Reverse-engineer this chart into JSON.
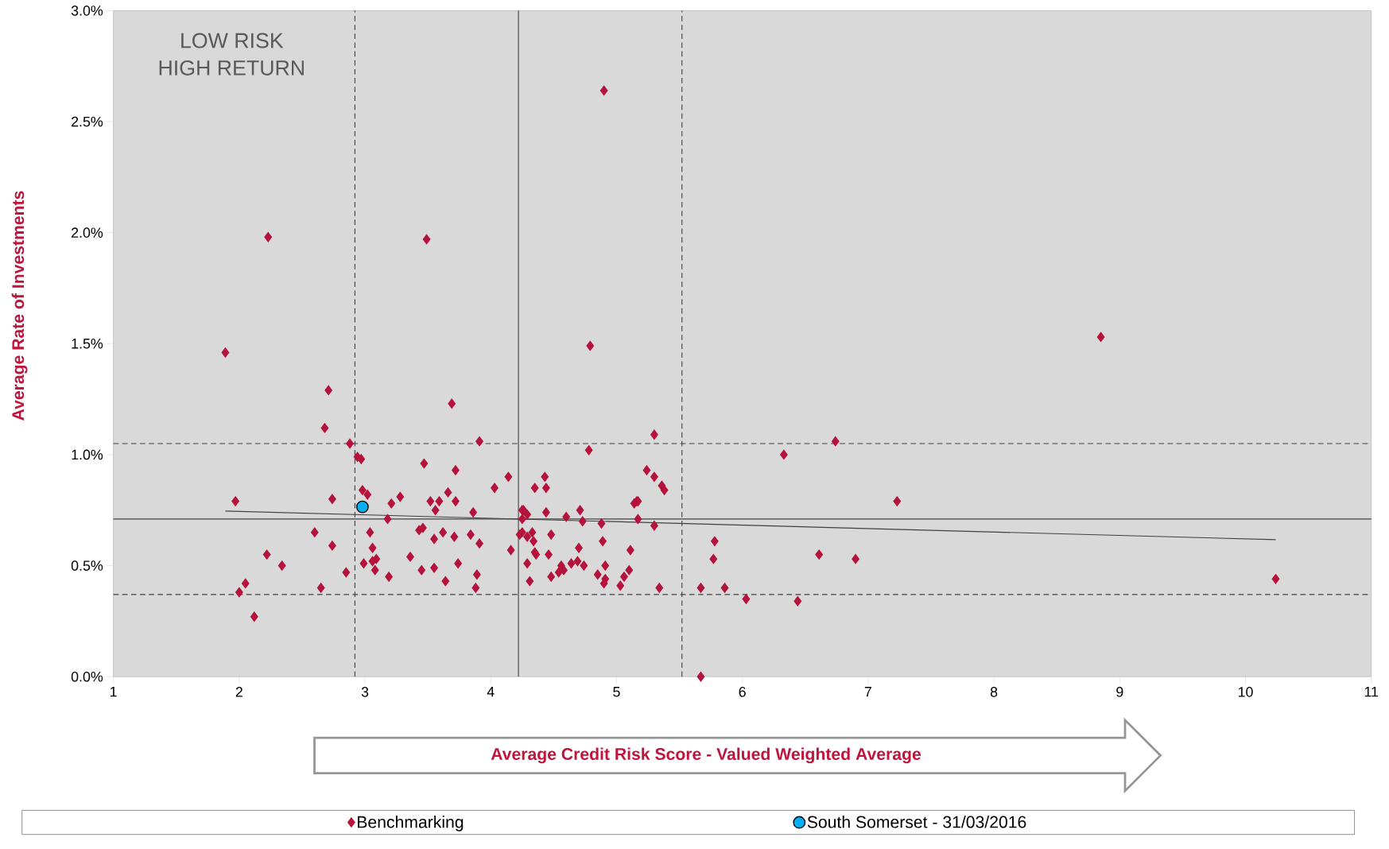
{
  "chart_data": {
    "type": "scatter",
    "ylabel": "Average Rate of Investments",
    "xlabel": "Average Credit Risk Score - Valued Weighted Average",
    "annotations": [
      "LOW RISK",
      "HIGH RETURN"
    ],
    "xlim": [
      1,
      11
    ],
    "xticks": [
      1,
      2,
      3,
      4,
      5,
      6,
      7,
      8,
      9,
      10,
      11
    ],
    "ylim": [
      0,
      3
    ],
    "yticks": [
      {
        "value": 0,
        "label": "0.0%"
      },
      {
        "value": 0.5,
        "label": "0.5%"
      },
      {
        "value": 1,
        "label": "1.0%"
      },
      {
        "value": 1.5,
        "label": "1.5%"
      },
      {
        "value": 2,
        "label": "2.0%"
      },
      {
        "value": 2.5,
        "label": "2.5%"
      },
      {
        "value": 3,
        "label": "3.0%"
      }
    ],
    "legend": "bottom",
    "ref_lines": [
      {
        "axis": "x",
        "value": 2.92,
        "line_style": "dashed",
        "color": "#404040"
      },
      {
        "axis": "x",
        "value": 4.22,
        "line_style": "solid",
        "color": "#404040"
      },
      {
        "axis": "x",
        "value": 5.52,
        "line_style": "dashed",
        "color": "#404040"
      },
      {
        "axis": "y",
        "value": 0.71,
        "line_style": "solid",
        "color": "#404040"
      },
      {
        "axis": "y",
        "value": 1.05,
        "line_style": "dashed",
        "color": "#404040"
      },
      {
        "axis": "y",
        "value": 0.37,
        "line_style": "dashed",
        "color": "#404040"
      }
    ],
    "series": [
      {
        "name": "Benchmarking",
        "marker": "diamond",
        "color": "#b5123c",
        "x": [
          1.89,
          2.23,
          3.49,
          4.9,
          4.79,
          8.85,
          10.24,
          7.23,
          6.9,
          6.61,
          6.33,
          6.74,
          6.03,
          6.44,
          5.67,
          5.67,
          5.86,
          5.78,
          5.77,
          2.71,
          3.69,
          2.68,
          2.88,
          3.91,
          2.94,
          2.97,
          3.47,
          3.72,
          4.14,
          4.03,
          4.35,
          2.98,
          3.02,
          3.66,
          3.28,
          1.97,
          2.74,
          3.21,
          3.52,
          3.59,
          3.72,
          3.56,
          3.86,
          4.25,
          4.26,
          4.29,
          4.25,
          3.18,
          2.6,
          2.74,
          3.04,
          3.06,
          3.43,
          3.46,
          3.62,
          3.55,
          3.71,
          3.84,
          3.91,
          4.23,
          4.25,
          4.33,
          4.29,
          4.34,
          4.35,
          4.36,
          4.16,
          2.22,
          2.34,
          2.05,
          2.0,
          2.12,
          2.65,
          2.85,
          2.99,
          3.06,
          3.09,
          3.08,
          3.19,
          3.36,
          3.45,
          3.55,
          3.64,
          3.74,
          3.89,
          3.88,
          4.29,
          4.31,
          5.3,
          4.78,
          4.43,
          4.44,
          5.24,
          5.3,
          5.36,
          5.38,
          5.14,
          5.16,
          5.17,
          4.44,
          4.71,
          4.6,
          4.73,
          4.88,
          5.17,
          5.3,
          4.48,
          4.89,
          4.7,
          5.11,
          4.46,
          4.64,
          4.69,
          4.74,
          4.91,
          4.56,
          4.58,
          4.54,
          4.48,
          4.85,
          4.91,
          4.9,
          5.06,
          5.1,
          5.03,
          5.34
        ],
        "values": [
          1.46,
          1.98,
          1.97,
          2.64,
          1.49,
          1.53,
          0.44,
          0.79,
          0.53,
          0.55,
          1.0,
          1.06,
          0.35,
          0.34,
          0.0,
          0.4,
          0.4,
          0.61,
          0.53,
          1.29,
          1.23,
          1.12,
          1.05,
          1.06,
          0.99,
          0.98,
          0.96,
          0.93,
          0.9,
          0.85,
          0.85,
          0.84,
          0.82,
          0.83,
          0.81,
          0.79,
          0.8,
          0.78,
          0.79,
          0.79,
          0.79,
          0.75,
          0.74,
          0.75,
          0.75,
          0.73,
          0.71,
          0.71,
          0.65,
          0.59,
          0.65,
          0.58,
          0.66,
          0.67,
          0.65,
          0.62,
          0.63,
          0.64,
          0.6,
          0.64,
          0.65,
          0.65,
          0.63,
          0.61,
          0.56,
          0.55,
          0.57,
          0.55,
          0.5,
          0.42,
          0.38,
          0.27,
          0.4,
          0.47,
          0.51,
          0.52,
          0.53,
          0.48,
          0.45,
          0.54,
          0.48,
          0.49,
          0.43,
          0.51,
          0.46,
          0.4,
          0.51,
          0.43,
          1.09,
          1.02,
          0.9,
          0.85,
          0.93,
          0.9,
          0.86,
          0.84,
          0.78,
          0.79,
          0.79,
          0.74,
          0.75,
          0.72,
          0.7,
          0.69,
          0.71,
          0.68,
          0.64,
          0.61,
          0.58,
          0.57,
          0.55,
          0.51,
          0.52,
          0.5,
          0.5,
          0.5,
          0.48,
          0.47,
          0.45,
          0.46,
          0.44,
          0.42,
          0.45,
          0.48,
          0.41,
          0.4
        ]
      },
      {
        "name": "South Somerset - 31/03/2016",
        "marker": "circle",
        "color": "#00b0f0",
        "x": [
          2.98
        ],
        "values": [
          0.765
        ]
      },
      {
        "type": "line",
        "color": "#404040",
        "x": [
          1.89,
          10.24
        ],
        "values": [
          0.746,
          0.617
        ]
      }
    ]
  }
}
